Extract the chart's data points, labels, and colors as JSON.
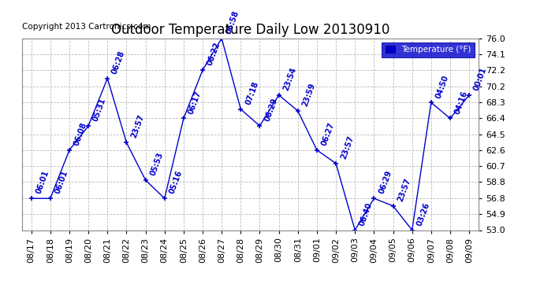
{
  "title": "Outdoor Temperature Daily Low 20130910",
  "copyright": "Copyright 2013 Cartronics.com",
  "legend_label": "Temperature (°F)",
  "dates": [
    "08/17",
    "08/18",
    "08/19",
    "08/20",
    "08/21",
    "08/22",
    "08/23",
    "08/24",
    "08/25",
    "08/26",
    "08/27",
    "08/28",
    "08/29",
    "08/30",
    "08/31",
    "09/01",
    "09/02",
    "09/03",
    "09/04",
    "09/05",
    "09/06",
    "09/07",
    "09/08",
    "09/09"
  ],
  "temps": [
    56.8,
    56.8,
    62.6,
    65.5,
    71.2,
    63.5,
    59.0,
    56.8,
    66.4,
    72.2,
    76.0,
    67.5,
    65.5,
    69.2,
    67.3,
    62.6,
    61.0,
    53.0,
    56.8,
    55.9,
    53.0,
    68.3,
    66.4,
    69.2
  ],
  "times": [
    "06:01",
    "06:01",
    "06:08",
    "05:31",
    "06:28",
    "23:57",
    "05:53",
    "05:16",
    "06:17",
    "06:22",
    "06:58",
    "07:18",
    "06:29",
    "23:54",
    "23:59",
    "06:27",
    "23:57",
    "06:40",
    "06:29",
    "23:57",
    "03:26",
    "04:50",
    "04:16",
    "00:01"
  ],
  "ylim": [
    53.0,
    76.0
  ],
  "yticks": [
    53.0,
    54.9,
    56.8,
    58.8,
    60.7,
    62.6,
    64.5,
    66.4,
    68.3,
    70.2,
    72.2,
    74.1,
    76.0
  ],
  "line_color": "#0000cc",
  "marker_color": "#0000cc",
  "label_color": "#0000cc",
  "background_color": "#ffffff",
  "grid_color": "#bbbbbb",
  "title_fontsize": 12,
  "copyright_fontsize": 7.5,
  "tick_fontsize": 8,
  "label_fontsize": 7
}
